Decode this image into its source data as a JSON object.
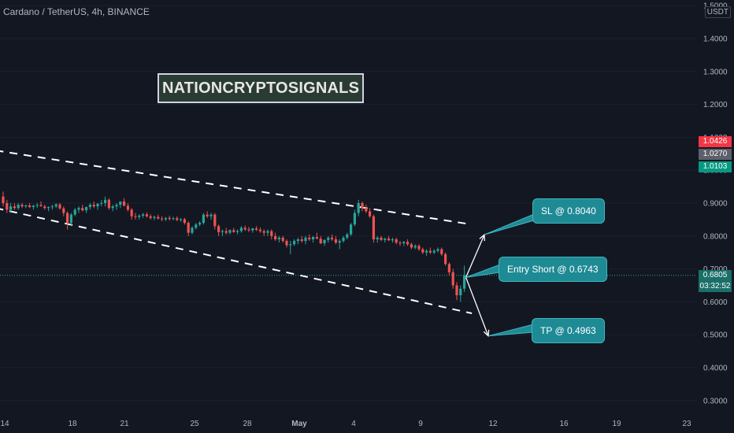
{
  "header": {
    "title": "Cardano / TetherUS, 4h, BINANCE",
    "currency": "USDT"
  },
  "watermark": "NATIONCRYPTOSIGNALS",
  "annotations": {
    "sl": "SL @ 0.8040",
    "entry": "Entry Short @ 0.6743",
    "tp": "TP @ 0.4963"
  },
  "price_tags": {
    "high": "1.0426",
    "mid": "1.0270",
    "low": "1.0103",
    "last": "0.6805",
    "countdown": "03:32:52"
  },
  "colors": {
    "background": "#131722",
    "up": "#26a69a",
    "down": "#ef5350",
    "callout": "#1e8a94",
    "tag_red": "#f23645",
    "tag_grey": "#5d606b",
    "tag_green": "#089981",
    "last_price": "#1a6f68"
  },
  "chart_data": {
    "type": "candlestick",
    "title": "Cardano / TetherUS, 4h, BINANCE",
    "y_axis": {
      "ticks": [
        "1.5000",
        "1.4000",
        "1.3000",
        "1.2000",
        "1.1000",
        "1.0000",
        "0.9000",
        "0.8000",
        "0.7000",
        "0.6000",
        "0.5000",
        "0.4000",
        "0.3000"
      ],
      "ylim": [
        0.28,
        1.51
      ]
    },
    "x_axis": {
      "ticks": [
        "14",
        "18",
        "21",
        "25",
        "28",
        "May",
        "4",
        "9",
        "12",
        "16",
        "19",
        "23"
      ]
    },
    "series": [
      {
        "values": [
          [
            0.92,
            0.935,
            0.89,
            0.9
          ],
          [
            0.9,
            0.91,
            0.87,
            0.88
          ],
          [
            0.88,
            0.9,
            0.87,
            0.89
          ],
          [
            0.89,
            0.9,
            0.88,
            0.885
          ],
          [
            0.885,
            0.9,
            0.88,
            0.895
          ],
          [
            0.895,
            0.9,
            0.885,
            0.89
          ],
          [
            0.89,
            0.895,
            0.885,
            0.893
          ],
          [
            0.893,
            0.9,
            0.885,
            0.888
          ],
          [
            0.888,
            0.895,
            0.88,
            0.892
          ],
          [
            0.892,
            0.9,
            0.885,
            0.894
          ],
          [
            0.894,
            0.905,
            0.89,
            0.89
          ],
          [
            0.89,
            0.895,
            0.88,
            0.885
          ],
          [
            0.885,
            0.89,
            0.875,
            0.888
          ],
          [
            0.888,
            0.895,
            0.88,
            0.89
          ],
          [
            0.89,
            0.9,
            0.885,
            0.896
          ],
          [
            0.896,
            0.9,
            0.88,
            0.884
          ],
          [
            0.884,
            0.89,
            0.86,
            0.87
          ],
          [
            0.87,
            0.875,
            0.82,
            0.84
          ],
          [
            0.84,
            0.87,
            0.83,
            0.865
          ],
          [
            0.865,
            0.885,
            0.86,
            0.88
          ],
          [
            0.88,
            0.89,
            0.87,
            0.885
          ],
          [
            0.885,
            0.895,
            0.875,
            0.878
          ],
          [
            0.878,
            0.89,
            0.87,
            0.888
          ],
          [
            0.888,
            0.9,
            0.88,
            0.895
          ],
          [
            0.895,
            0.905,
            0.885,
            0.89
          ],
          [
            0.89,
            0.9,
            0.88,
            0.898
          ],
          [
            0.898,
            0.91,
            0.89,
            0.9
          ],
          [
            0.9,
            0.92,
            0.89,
            0.91
          ],
          [
            0.91,
            0.915,
            0.88,
            0.885
          ],
          [
            0.885,
            0.895,
            0.875,
            0.89
          ],
          [
            0.89,
            0.9,
            0.88,
            0.895
          ],
          [
            0.895,
            0.9,
            0.885,
            0.905
          ],
          [
            0.905,
            0.915,
            0.89,
            0.892
          ],
          [
            0.892,
            0.9,
            0.875,
            0.88
          ],
          [
            0.88,
            0.885,
            0.85,
            0.86
          ],
          [
            0.86,
            0.87,
            0.85,
            0.858
          ],
          [
            0.858,
            0.866,
            0.85,
            0.862
          ],
          [
            0.862,
            0.87,
            0.855,
            0.866
          ],
          [
            0.866,
            0.872,
            0.856,
            0.86
          ],
          [
            0.86,
            0.866,
            0.85,
            0.855
          ],
          [
            0.855,
            0.862,
            0.848,
            0.858
          ],
          [
            0.858,
            0.865,
            0.85,
            0.853
          ],
          [
            0.853,
            0.86,
            0.845,
            0.851
          ],
          [
            0.851,
            0.858,
            0.845,
            0.855
          ],
          [
            0.855,
            0.862,
            0.847,
            0.852
          ],
          [
            0.852,
            0.858,
            0.848,
            0.854
          ],
          [
            0.854,
            0.86,
            0.845,
            0.849
          ],
          [
            0.849,
            0.855,
            0.843,
            0.851
          ],
          [
            0.851,
            0.855,
            0.835,
            0.84
          ],
          [
            0.84,
            0.845,
            0.8,
            0.81
          ],
          [
            0.81,
            0.83,
            0.805,
            0.825
          ],
          [
            0.825,
            0.84,
            0.82,
            0.835
          ],
          [
            0.835,
            0.845,
            0.83,
            0.84
          ],
          [
            0.84,
            0.87,
            0.835,
            0.865
          ],
          [
            0.865,
            0.875,
            0.855,
            0.86
          ],
          [
            0.86,
            0.87,
            0.85,
            0.865
          ],
          [
            0.865,
            0.87,
            0.82,
            0.83
          ],
          [
            0.83,
            0.835,
            0.8,
            0.812
          ],
          [
            0.812,
            0.82,
            0.8,
            0.815
          ],
          [
            0.815,
            0.825,
            0.805,
            0.81
          ],
          [
            0.81,
            0.82,
            0.805,
            0.818
          ],
          [
            0.818,
            0.825,
            0.81,
            0.812
          ],
          [
            0.812,
            0.82,
            0.805,
            0.815
          ],
          [
            0.815,
            0.83,
            0.81,
            0.825
          ],
          [
            0.825,
            0.832,
            0.815,
            0.82
          ],
          [
            0.82,
            0.828,
            0.812,
            0.817
          ],
          [
            0.817,
            0.825,
            0.81,
            0.823
          ],
          [
            0.823,
            0.83,
            0.815,
            0.819
          ],
          [
            0.819,
            0.826,
            0.81,
            0.815
          ],
          [
            0.815,
            0.82,
            0.8,
            0.81
          ],
          [
            0.81,
            0.82,
            0.8,
            0.815
          ],
          [
            0.815,
            0.82,
            0.79,
            0.8
          ],
          [
            0.8,
            0.81,
            0.785,
            0.79
          ],
          [
            0.79,
            0.8,
            0.78,
            0.795
          ],
          [
            0.795,
            0.8,
            0.78,
            0.785
          ],
          [
            0.785,
            0.79,
            0.765,
            0.772
          ],
          [
            0.772,
            0.785,
            0.745,
            0.775
          ],
          [
            0.775,
            0.79,
            0.77,
            0.785
          ],
          [
            0.785,
            0.795,
            0.775,
            0.79
          ],
          [
            0.79,
            0.8,
            0.78,
            0.785
          ],
          [
            0.785,
            0.8,
            0.775,
            0.795
          ],
          [
            0.795,
            0.805,
            0.785,
            0.79
          ],
          [
            0.79,
            0.8,
            0.78,
            0.797
          ],
          [
            0.797,
            0.81,
            0.79,
            0.792
          ],
          [
            0.792,
            0.8,
            0.775,
            0.778
          ],
          [
            0.778,
            0.79,
            0.77,
            0.788
          ],
          [
            0.788,
            0.8,
            0.78,
            0.795
          ],
          [
            0.795,
            0.805,
            0.785,
            0.79
          ],
          [
            0.79,
            0.8,
            0.775,
            0.78
          ],
          [
            0.78,
            0.79,
            0.76,
            0.785
          ],
          [
            0.785,
            0.8,
            0.78,
            0.795
          ],
          [
            0.795,
            0.81,
            0.79,
            0.805
          ],
          [
            0.805,
            0.84,
            0.8,
            0.835
          ],
          [
            0.835,
            0.88,
            0.83,
            0.87
          ],
          [
            0.87,
            0.91,
            0.86,
            0.9
          ],
          [
            0.9,
            0.905,
            0.875,
            0.885
          ],
          [
            0.885,
            0.895,
            0.87,
            0.875
          ],
          [
            0.875,
            0.885,
            0.855,
            0.86
          ],
          [
            0.86,
            0.865,
            0.78,
            0.79
          ],
          [
            0.79,
            0.8,
            0.78,
            0.795
          ],
          [
            0.795,
            0.8,
            0.785,
            0.788
          ],
          [
            0.788,
            0.795,
            0.78,
            0.792
          ],
          [
            0.792,
            0.8,
            0.785,
            0.787
          ],
          [
            0.787,
            0.795,
            0.78,
            0.79
          ],
          [
            0.79,
            0.795,
            0.775,
            0.78
          ],
          [
            0.78,
            0.785,
            0.77,
            0.778
          ],
          [
            0.778,
            0.785,
            0.77,
            0.782
          ],
          [
            0.782,
            0.79,
            0.77,
            0.775
          ],
          [
            0.775,
            0.78,
            0.76,
            0.765
          ],
          [
            0.765,
            0.775,
            0.76,
            0.77
          ],
          [
            0.77,
            0.775,
            0.755,
            0.76
          ],
          [
            0.76,
            0.765,
            0.745,
            0.75
          ],
          [
            0.75,
            0.76,
            0.74,
            0.755
          ],
          [
            0.755,
            0.765,
            0.745,
            0.75
          ],
          [
            0.75,
            0.76,
            0.745,
            0.755
          ],
          [
            0.755,
            0.765,
            0.75,
            0.76
          ],
          [
            0.76,
            0.765,
            0.74,
            0.745
          ],
          [
            0.745,
            0.75,
            0.71,
            0.715
          ],
          [
            0.715,
            0.72,
            0.68,
            0.69
          ],
          [
            0.69,
            0.7,
            0.64,
            0.65
          ],
          [
            0.65,
            0.66,
            0.605,
            0.62
          ],
          [
            0.62,
            0.65,
            0.6,
            0.64
          ],
          [
            0.64,
            0.71,
            0.63,
            0.6805
          ]
        ]
      }
    ],
    "trendlines": [
      {
        "points": [
          [
            -2,
            1.06
          ],
          [
            124,
            0.835
          ]
        ]
      },
      {
        "points": [
          [
            -2,
            0.885
          ],
          [
            124,
            0.565
          ]
        ]
      }
    ],
    "last_price": 0.6805,
    "targets": {
      "sl": 0.804,
      "entry": 0.6743,
      "tp": 0.4963
    }
  }
}
